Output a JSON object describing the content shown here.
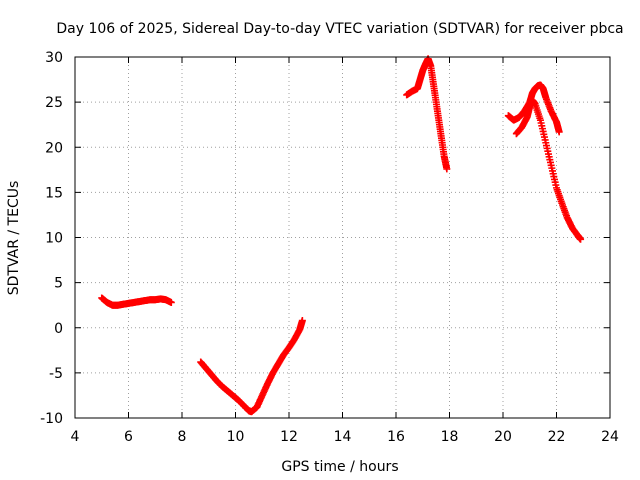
{
  "chart_data": {
    "type": "scatter",
    "title": "Day 106 of 2025, Sidereal Day-to-day VTEC variation (SDTVAR) for receiver pbca",
    "xlabel": "GPS time / hours",
    "ylabel": "SDTVAR / TECUs",
    "xlim": [
      4,
      24
    ],
    "ylim": [
      -10,
      30
    ],
    "xticks": [
      "4",
      "6",
      "8",
      "10",
      "12",
      "14",
      "16",
      "18",
      "20",
      "22",
      "24"
    ],
    "yticks": [
      "-10",
      "-5",
      "0",
      "5",
      "10",
      "15",
      "20",
      "25",
      "30"
    ],
    "grid": true,
    "series": [
      {
        "name": "segment-1",
        "color": "#ff0000",
        "marker": "plus",
        "x": [
          5.0,
          5.2,
          5.4,
          5.6,
          5.8,
          6.0,
          6.2,
          6.4,
          6.6,
          6.8,
          7.0,
          7.2,
          7.4,
          7.6
        ],
        "y": [
          3.3,
          2.8,
          2.5,
          2.5,
          2.6,
          2.7,
          2.8,
          2.9,
          3.0,
          3.1,
          3.1,
          3.2,
          3.1,
          2.8
        ]
      },
      {
        "name": "segment-2",
        "color": "#ff0000",
        "marker": "plus",
        "x": [
          8.7,
          8.9,
          9.1,
          9.3,
          9.5,
          9.7,
          9.9,
          10.1,
          10.3,
          10.5,
          10.6,
          10.8,
          11.0,
          11.2,
          11.4,
          11.6,
          11.8,
          12.0,
          12.2,
          12.4,
          12.5
        ],
        "y": [
          -3.8,
          -4.5,
          -5.2,
          -5.9,
          -6.5,
          -7.0,
          -7.5,
          -8.0,
          -8.6,
          -9.2,
          -9.3,
          -8.8,
          -7.5,
          -6.2,
          -5.0,
          -4.0,
          -3.0,
          -2.2,
          -1.3,
          -0.2,
          0.8
        ]
      },
      {
        "name": "segment-3",
        "color": "#ff0000",
        "marker": "plus",
        "x": [
          16.4,
          16.6,
          16.8,
          16.9,
          17.0,
          17.1,
          17.2,
          17.3,
          17.4,
          17.5,
          17.6,
          17.7,
          17.8,
          17.9
        ],
        "y": [
          25.8,
          26.2,
          26.5,
          27.5,
          28.5,
          29.2,
          29.8,
          29.0,
          27.0,
          25.0,
          23.0,
          21.0,
          19.0,
          17.6
        ]
      },
      {
        "name": "segment-4",
        "color": "#ff0000",
        "marker": "plus",
        "x": [
          20.2,
          20.4,
          20.6,
          20.8,
          21.0,
          21.1,
          21.2,
          21.3,
          21.4,
          21.5,
          21.6,
          21.8,
          22.0,
          22.1
        ],
        "y": [
          23.5,
          23.0,
          23.3,
          24.0,
          25.0,
          26.0,
          26.5,
          26.8,
          26.9,
          26.5,
          25.5,
          24.0,
          22.8,
          21.7
        ]
      },
      {
        "name": "segment-5",
        "color": "#ff0000",
        "marker": "plus",
        "x": [
          20.5,
          20.7,
          20.9,
          21.0,
          21.1,
          21.2,
          21.4,
          21.6,
          21.8,
          22.0,
          22.2,
          22.4,
          22.6,
          22.8,
          22.9
        ],
        "y": [
          21.5,
          22.2,
          23.3,
          24.5,
          25.2,
          24.8,
          23.0,
          20.5,
          18.0,
          15.5,
          13.8,
          12.2,
          11.0,
          10.2,
          9.8
        ]
      }
    ]
  }
}
